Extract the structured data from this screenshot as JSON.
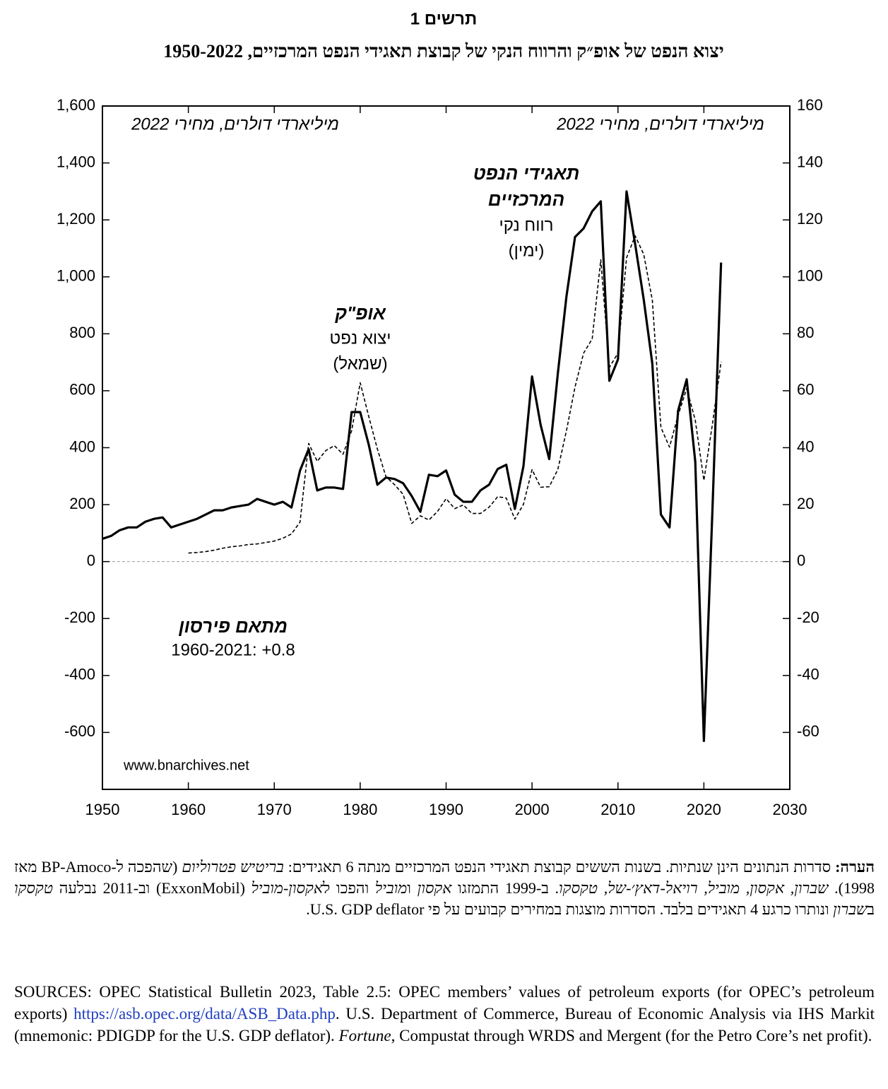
{
  "chart_data": {
    "type": "line",
    "title": "תרשים 1",
    "subtitle": "יצוא הנפט של אופ״ק והרווח הנקי של קבוצת תאגידי הנפט המרכזיים, 1950-2022",
    "y_label": "מיליארדי דולרים, מחירי 2022",
    "y2_label": "מיליארדי דולרים, מחירי 2022",
    "annotations": [
      "אופ\"ק",
      "יצוא נפט",
      "(שמאל)",
      "תאגידי הנפט",
      "המרכזיים",
      "רווח נקי",
      "(ימין)",
      "מתאם פירסון",
      "1960-2021: +0.8",
      "www.bnarchives.net"
    ],
    "x": [
      1950,
      1951,
      1952,
      1953,
      1954,
      1955,
      1956,
      1957,
      1958,
      1959,
      1960,
      1961,
      1962,
      1963,
      1964,
      1965,
      1966,
      1967,
      1968,
      1969,
      1970,
      1971,
      1972,
      1973,
      1974,
      1975,
      1976,
      1977,
      1978,
      1979,
      1980,
      1981,
      1982,
      1983,
      1984,
      1985,
      1986,
      1987,
      1988,
      1989,
      1990,
      1991,
      1992,
      1993,
      1994,
      1995,
      1996,
      1997,
      1998,
      1999,
      2000,
      2001,
      2002,
      2003,
      2004,
      2005,
      2006,
      2007,
      2008,
      2009,
      2010,
      2011,
      2012,
      2013,
      2014,
      2015,
      2016,
      2017,
      2018,
      2019,
      2020,
      2021,
      2022
    ],
    "series": [
      {
        "name": "יצוא נפט",
        "color": "#000000",
        "line_style": "dashed",
        "axis": "y",
        "values": [
          null,
          null,
          null,
          null,
          null,
          null,
          null,
          null,
          null,
          null,
          30,
          32,
          35,
          40,
          47,
          52,
          55,
          60,
          62,
          67,
          72,
          82,
          97,
          139,
          415,
          352,
          390,
          407,
          377,
          459,
          628,
          509,
          395,
          298,
          270,
          236,
          134,
          161,
          146,
          176,
          221,
          186,
          199,
          169,
          169,
          191,
          228,
          223,
          149,
          201,
          323,
          261,
          263,
          323,
          459,
          613,
          732,
          782,
          1060,
          682,
          732,
          1067,
          1144,
          1079,
          918,
          471,
          402,
          514,
          608,
          496,
          285,
          484,
          702
        ]
      },
      {
        "name": "רווח נקי",
        "color": "#000000",
        "line_style": "solid",
        "axis": "y2",
        "values": [
          8,
          9,
          11,
          12,
          12,
          14,
          15,
          15.5,
          12,
          13,
          14,
          15,
          16.5,
          18,
          18,
          19,
          19.5,
          20,
          22,
          21,
          20,
          21,
          19,
          32,
          39.5,
          25,
          26,
          26,
          25.5,
          52.5,
          52.5,
          41,
          27,
          29.5,
          29,
          27.5,
          23,
          17.5,
          30.5,
          30,
          32,
          23.5,
          21,
          21,
          25,
          27,
          32.5,
          34,
          18.5,
          33.5,
          65,
          48,
          36,
          66,
          93,
          114,
          117,
          123,
          126.5,
          63.5,
          71,
          130,
          111.5,
          92,
          69.5,
          16.5,
          12,
          53,
          64,
          35,
          -63,
          18.5,
          105
        ]
      }
    ],
    "xlim": [
      1950,
      2030
    ],
    "xticks": [
      1950,
      1960,
      1970,
      1980,
      1990,
      2000,
      2010,
      2020,
      2030
    ],
    "ylim": [
      -800,
      1600
    ],
    "yticks": [
      -600,
      -400,
      -200,
      0,
      200,
      400,
      600,
      800,
      {
        "value": 1000,
        "label": "1,000"
      },
      {
        "value": 1200,
        "label": "1,200"
      },
      {
        "value": 1400,
        "label": "1,400"
      },
      {
        "value": 1600,
        "label": "1,600"
      }
    ],
    "y2lim": [
      -80,
      160
    ],
    "y2ticks": [
      -60,
      -40,
      -20,
      0,
      20,
      40,
      60,
      80,
      100,
      120,
      140,
      160
    ],
    "grid": false
  },
  "note": [
    "הערה:",
    " סדרות הנתונים הינן שנתיות. בשנות הששים קבוצת תאגידי הנפט המרכזיים מנתה 6 תאגידים: ",
    "בריטיש פטרוליום",
    " (שהפכה ל-BP-Amoco מאז 1998). ",
    "שברון, אקסון, מוביל, רויאל-דאץ׳-של, טקסקו",
    ". ב-1999 התמזגו ",
    "אקסון",
    " ו",
    "מוביל",
    " והפכו ל",
    "אקסון-מוביל",
    " (ExxonMobil) וב-2011 נבלעה ",
    "טקסקו",
    " ב",
    "שברון",
    " ונותרו כרגע 4 תאגידים בלבד. הסדרות מוצגות במחירים קבועים על פי U.S. GDP deflator."
  ],
  "sources": [
    "SOURCES: OPEC Statistical Bulletin 2023, Table 2.5: OPEC members’ values of petroleum exports (for OPEC’s petroleum exports) ",
    "https://asb.opec.org/data/ASB_Data.php",
    ". U.S. Department of Commerce, Bureau of Economic Analysis via IHS Markit (mnemonic: PDIGDP for the U.S. GDP deflator). ",
    "Fortune",
    ", Compustat through WRDS and Mergent (for the Petro Core’s net profit)."
  ]
}
